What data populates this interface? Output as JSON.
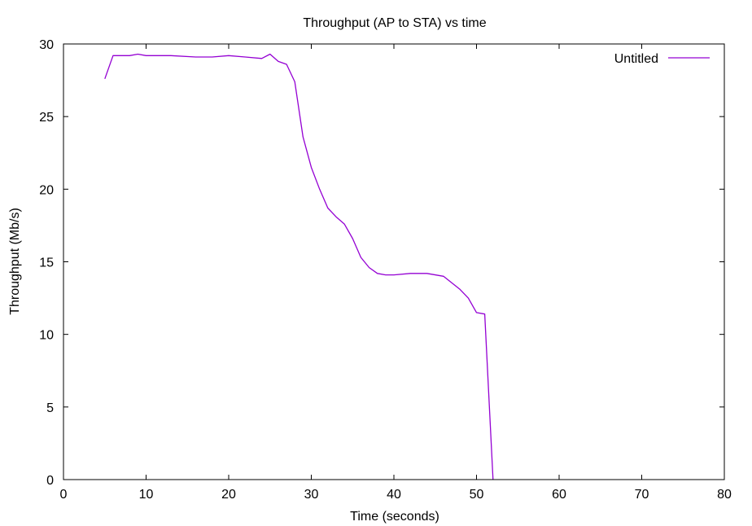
{
  "chart_data": {
    "type": "line",
    "title": "Throughput (AP to STA) vs time",
    "xlabel": "Time (seconds)",
    "ylabel": "Throughput (Mb/s)",
    "xlim": [
      0,
      80
    ],
    "ylim": [
      0,
      30
    ],
    "xticks": [
      0,
      10,
      20,
      30,
      40,
      50,
      60,
      70,
      80
    ],
    "yticks": [
      0,
      5,
      10,
      15,
      20,
      25,
      30
    ],
    "grid": false,
    "legend_position": "top-right",
    "series": [
      {
        "name": "Untitled",
        "color": "#9400d3",
        "x": [
          5,
          6,
          8,
          9,
          10,
          13,
          16,
          18,
          20,
          22,
          24,
          25,
          26,
          27,
          28,
          29,
          30,
          31,
          32,
          33,
          34,
          35,
          36,
          37,
          38,
          39,
          40,
          42,
          44,
          46,
          48,
          49,
          50,
          51,
          52
        ],
        "y": [
          27.6,
          29.2,
          29.2,
          29.3,
          29.2,
          29.2,
          29.1,
          29.1,
          29.2,
          29.1,
          29.0,
          29.3,
          28.8,
          28.6,
          27.4,
          23.6,
          21.5,
          20.0,
          18.7,
          18.1,
          17.6,
          16.6,
          15.3,
          14.6,
          14.2,
          14.1,
          14.1,
          14.2,
          14.2,
          14.0,
          13.1,
          12.5,
          11.5,
          11.4,
          0
        ]
      }
    ]
  }
}
